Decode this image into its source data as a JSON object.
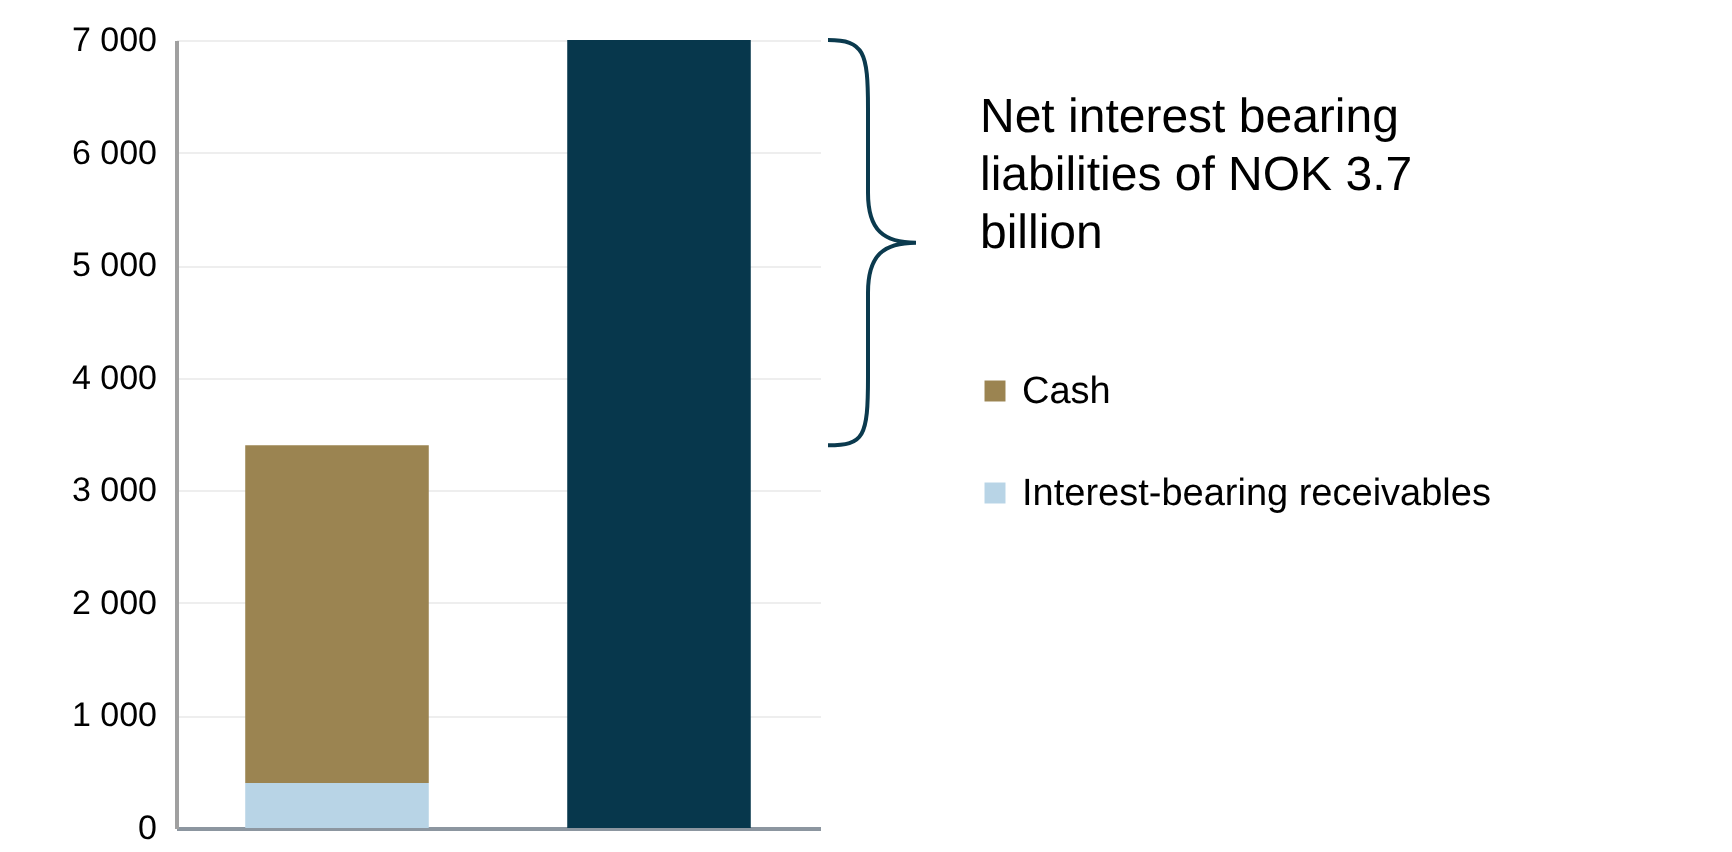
{
  "chart_data": {
    "type": "bar",
    "stacked": true,
    "categories": [
      null,
      null
    ],
    "series": [
      {
        "name": "Interest-bearing receivables",
        "color": "#b8d4e6",
        "values": [
          400,
          null
        ]
      },
      {
        "name": "Cash",
        "color": "#9b8451",
        "values": [
          3000,
          null
        ]
      },
      {
        "color": "#07374c",
        "values": [
          null,
          7000
        ]
      }
    ],
    "ylim": [
      0,
      7000
    ],
    "yticks": [
      {
        "value": 0,
        "label": "0"
      },
      {
        "value": 1000,
        "label": "1 000"
      },
      {
        "value": 2000,
        "label": "2 000"
      },
      {
        "value": 3000,
        "label": "3 000"
      },
      {
        "value": 4000,
        "label": "4 000"
      },
      {
        "value": 5000,
        "label": "5 000"
      },
      {
        "value": 6000,
        "label": "6 000"
      },
      {
        "value": 7000,
        "label": "7 000"
      }
    ],
    "grid": "y",
    "legend": "right",
    "annotations": [
      "Net interest bearing liabilities of NOK 3.7 billion"
    ]
  }
}
